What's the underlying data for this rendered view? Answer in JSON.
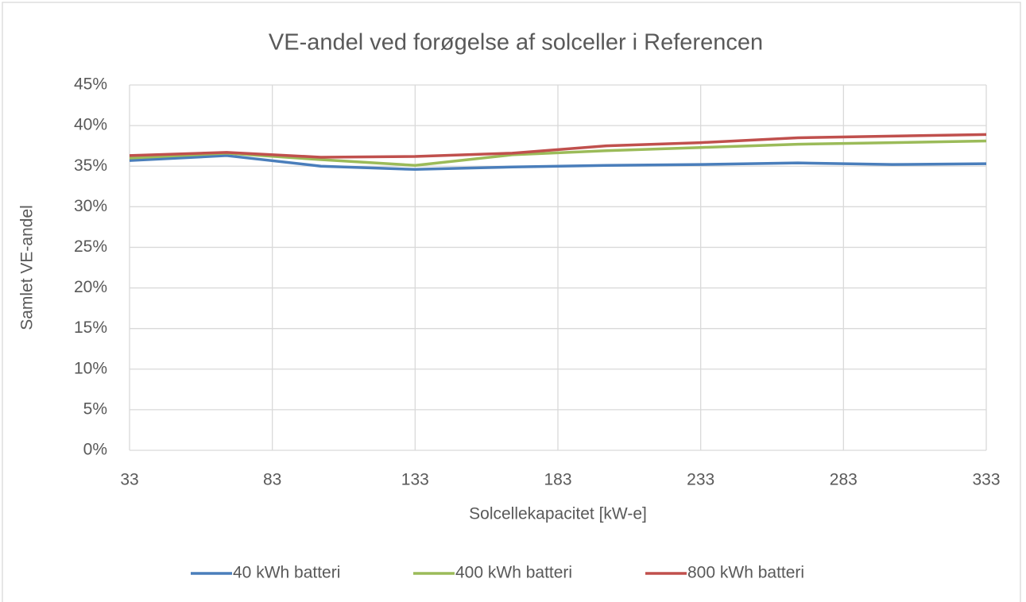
{
  "chart_data": {
    "type": "line",
    "title": "VE-andel ved forøgelse af solceller i Referencen",
    "x_label": "Solcellekapacitet [kW-e]",
    "y_label": "Samlet VE-andel",
    "x": [
      33,
      67,
      100,
      133,
      167,
      200,
      233,
      267,
      300,
      333
    ],
    "series": [
      {
        "name": "40 kWh batteri",
        "color": "#4a7ebb",
        "values": [
          35.7,
          36.3,
          35.0,
          34.6,
          34.9,
          35.1,
          35.2,
          35.4,
          35.2,
          35.3
        ]
      },
      {
        "name": "400 kWh batteri",
        "color": "#9bbb59",
        "values": [
          36.0,
          36.6,
          35.8,
          35.1,
          36.4,
          36.9,
          37.3,
          37.7,
          37.9,
          38.1
        ]
      },
      {
        "name": "800 kWh batteri",
        "color": "#c0504d",
        "values": [
          36.3,
          36.7,
          36.1,
          36.2,
          36.6,
          37.5,
          37.9,
          38.5,
          38.7,
          38.9
        ]
      }
    ],
    "xlim": [
      33,
      333
    ],
    "xticks": [
      33,
      83,
      133,
      183,
      233,
      283,
      333
    ],
    "ylim": [
      0,
      45
    ],
    "yticks": [
      {
        "value": 0,
        "label": "0%"
      },
      {
        "value": 5,
        "label": "5%"
      },
      {
        "value": 10,
        "label": "10%"
      },
      {
        "value": 15,
        "label": "15%"
      },
      {
        "value": 20,
        "label": "20%"
      },
      {
        "value": 25,
        "label": "25%"
      },
      {
        "value": 30,
        "label": "30%"
      },
      {
        "value": 35,
        "label": "35%"
      },
      {
        "value": 40,
        "label": "40%"
      },
      {
        "value": 45,
        "label": "45%"
      }
    ],
    "grid": true,
    "legend": "bottom"
  }
}
